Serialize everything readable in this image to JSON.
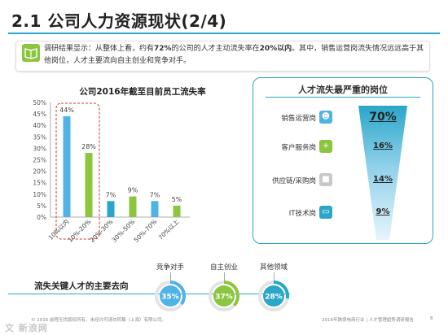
{
  "page": {
    "title": "2.1 公司人力资源现状(2/4)",
    "finding_prefix": "调研结果显示：从整体上看，约有",
    "finding_highlight_1": "72%",
    "finding_mid": "的公司的人才主动流失率在",
    "finding_highlight_2": "20%以内",
    "finding_suffix": "。其中，销售运营岗流失情况远远高于其他岗位，人才主要流向自主创业和竞争对手。"
  },
  "chart_data": [
    {
      "type": "bar",
      "title": "公司2016年截至目前员工流失率",
      "categories": [
        "10%以内",
        "10%-20%",
        "20%-30%",
        "30%-50%",
        "50%-70%",
        "70%以上"
      ],
      "values": [
        44,
        28,
        7,
        9,
        7,
        5
      ],
      "value_labels": [
        "44%",
        "28%",
        "7%",
        "9%",
        "7%",
        "5%"
      ],
      "yticks": [
        "0%",
        "5%",
        "10%",
        "15%",
        "20%",
        "25%",
        "30%",
        "35%",
        "40%",
        "45%",
        "50%"
      ],
      "ylim": [
        0,
        50
      ],
      "bar_colors": [
        "#4fb3e5",
        "#8cc63f",
        "#2aa6c9",
        "#8cc63f",
        "#4fb3e5",
        "#8cc63f"
      ],
      "highlight_categories": [
        "10%以内",
        "10%-20%"
      ],
      "grid": false
    },
    {
      "type": "bar",
      "title": "人才流失最严重的岗位",
      "categories": [
        "销售运营岗",
        "客户服务岗",
        "供应链/采购岗",
        "IT技术岗"
      ],
      "values": [
        70,
        16,
        14,
        9
      ],
      "value_labels": [
        "70%",
        "16%",
        "14%",
        "9%"
      ]
    },
    {
      "type": "pie",
      "title": "流失关键人才的主要去向",
      "categories": [
        "竞争对手",
        "自主创业",
        "其他领域"
      ],
      "values": [
        35,
        37,
        28
      ],
      "value_labels": [
        "35%",
        "37%",
        "28%"
      ],
      "colors": [
        "#4fb3e5",
        "#8cc63f",
        "#2aa6c9"
      ]
    }
  ],
  "positions": {
    "icon_colors": [
      "#4fb3e5",
      "#8cc63f",
      "#c8c8c8",
      "#2aa6c9"
    ],
    "icon_names": [
      "people-icon",
      "add-user-icon",
      "truck-icon",
      "monitor-icon"
    ]
  },
  "footer": {
    "left": "© 2016 前程无忧版权所有，未经许可请勿转载（上海）有限公司。",
    "right": "2016年跨境电商行业 | 人才管理趋势调研报告",
    "page": "8",
    "watermark": "文 新浪网"
  },
  "colors": {
    "accent": "#2aa6c9",
    "blue": "#4fb3e5",
    "green": "#8cc63f",
    "highlight_border": "#e0322b"
  }
}
